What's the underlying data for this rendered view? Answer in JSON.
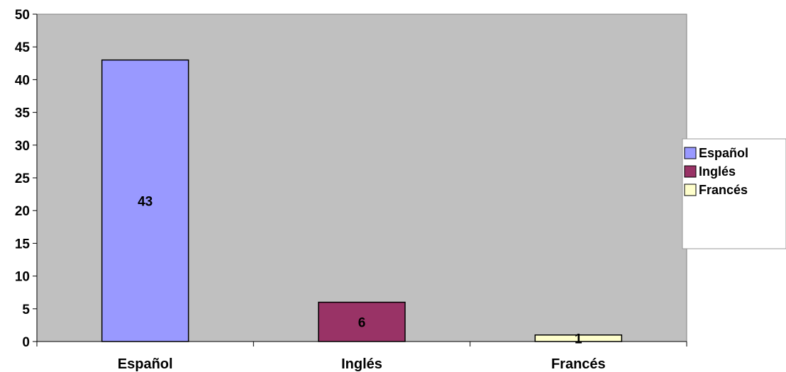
{
  "chart_data": {
    "type": "bar",
    "categories": [
      "Español",
      "Inglés",
      "Francés"
    ],
    "values": [
      43,
      6,
      1
    ],
    "data_labels": [
      "43",
      "6",
      "1"
    ],
    "ylim": [
      0,
      50
    ],
    "yticks": [
      0,
      5,
      10,
      15,
      20,
      25,
      30,
      35,
      40,
      45,
      50
    ],
    "ytick_labels": [
      "0",
      "5",
      "10",
      "15",
      "20",
      "25",
      "30",
      "35",
      "40",
      "45",
      "50"
    ],
    "colors": [
      "#9999ff",
      "#993366",
      "#ffffcc"
    ],
    "plot_background": "#c0c0c0",
    "legend": {
      "position": "right",
      "entries": [
        "Español",
        "Inglés",
        "Francés"
      ]
    },
    "grid": false
  }
}
